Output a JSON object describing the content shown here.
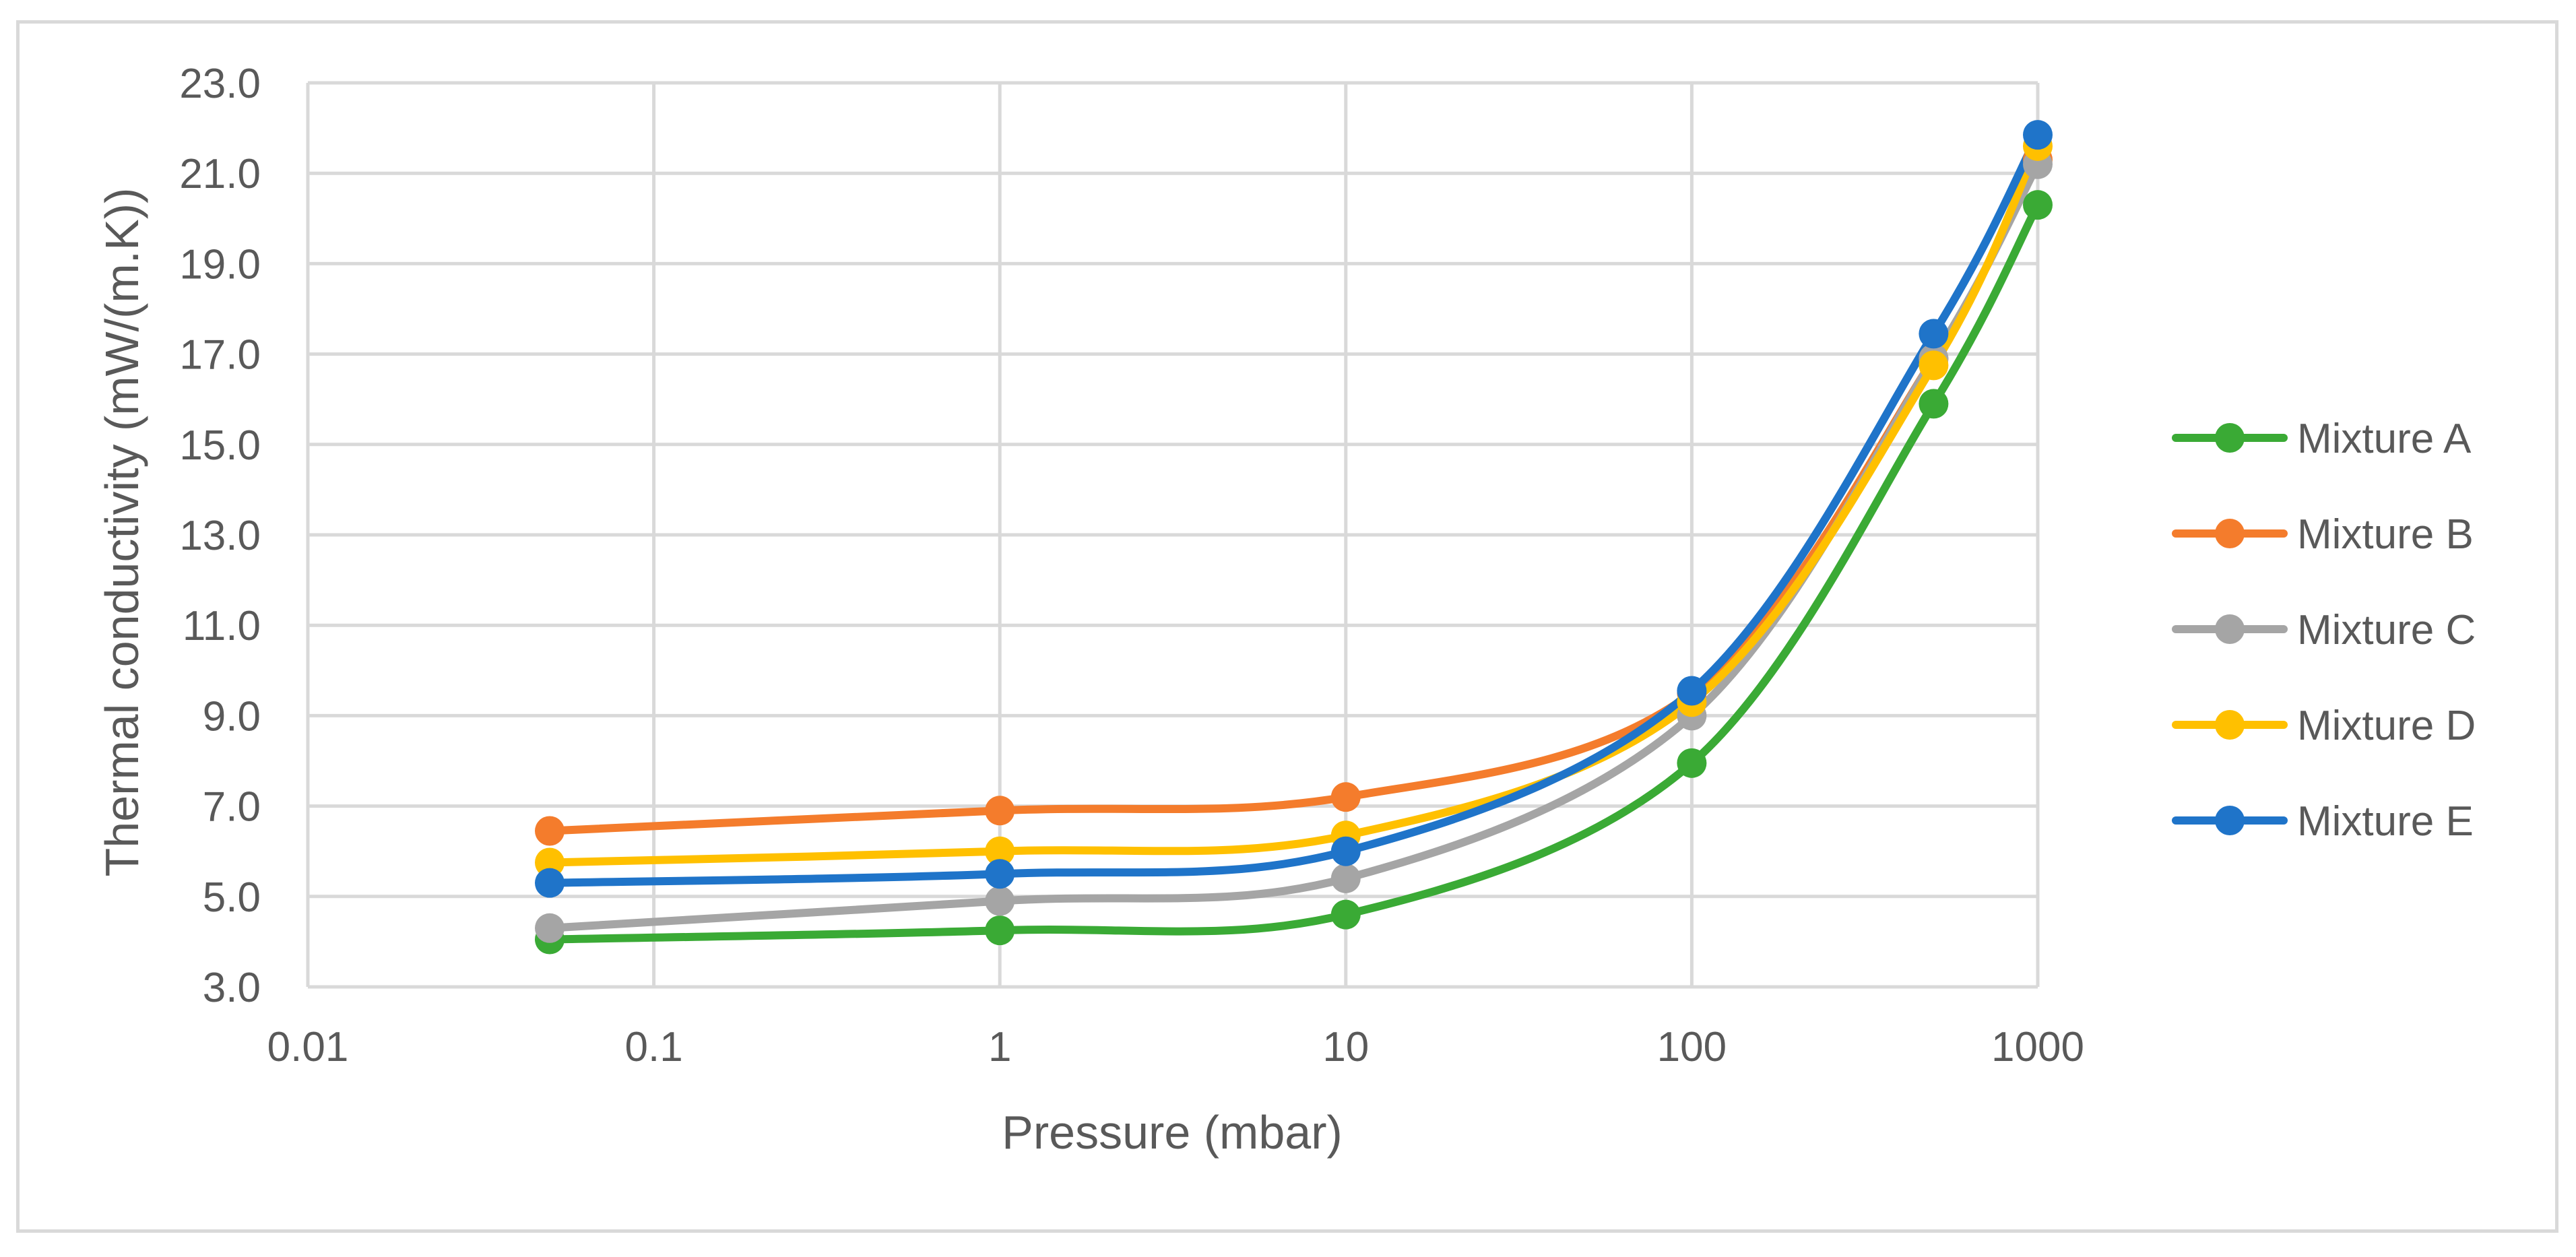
{
  "chart_data": {
    "type": "line",
    "title": "",
    "xlabel": "Pressure (mbar)",
    "ylabel": "Thermal conductivity (mW/(m.K))",
    "xscale": "log",
    "xlim": [
      0.01,
      1000
    ],
    "ylim": [
      3.0,
      23.0
    ],
    "x_ticks": [
      {
        "value": 0.01,
        "label": "0.01"
      },
      {
        "value": 0.1,
        "label": "0.1"
      },
      {
        "value": 1,
        "label": "1"
      },
      {
        "value": 10,
        "label": "10"
      },
      {
        "value": 100,
        "label": "100"
      },
      {
        "value": 1000,
        "label": "1000"
      }
    ],
    "y_ticks": [
      {
        "value": 3,
        "label": "3.0"
      },
      {
        "value": 5,
        "label": "5.0"
      },
      {
        "value": 7,
        "label": "7.0"
      },
      {
        "value": 9,
        "label": "9.0"
      },
      {
        "value": 11,
        "label": "11.0"
      },
      {
        "value": 13,
        "label": "13.0"
      },
      {
        "value": 15,
        "label": "15.0"
      },
      {
        "value": 17,
        "label": "17.0"
      },
      {
        "value": 19,
        "label": "19.0"
      },
      {
        "value": 21,
        "label": "21.0"
      },
      {
        "value": 23,
        "label": "23.0"
      }
    ],
    "grid": true,
    "legend_position": "right",
    "x": [
      0.05,
      1,
      10,
      100,
      500,
      1000
    ],
    "series": [
      {
        "name": "Mixture A",
        "color": "#3aaa35",
        "values": [
          4.05,
          4.25,
          4.6,
          7.95,
          15.9,
          20.3
        ]
      },
      {
        "name": "Mixture B",
        "color": "#f47c2c",
        "values": [
          6.45,
          6.9,
          7.2,
          9.5,
          16.9,
          21.3
        ]
      },
      {
        "name": "Mixture C",
        "color": "#a5a5a5",
        "values": [
          4.3,
          4.9,
          5.4,
          9.0,
          16.9,
          21.2
        ]
      },
      {
        "name": "Mixture D",
        "color": "#ffc000",
        "values": [
          5.75,
          6.0,
          6.35,
          9.3,
          16.75,
          21.6
        ]
      },
      {
        "name": "Mixture E",
        "color": "#1f74c9",
        "values": [
          5.3,
          5.5,
          6.0,
          9.55,
          17.45,
          21.85
        ]
      }
    ]
  }
}
